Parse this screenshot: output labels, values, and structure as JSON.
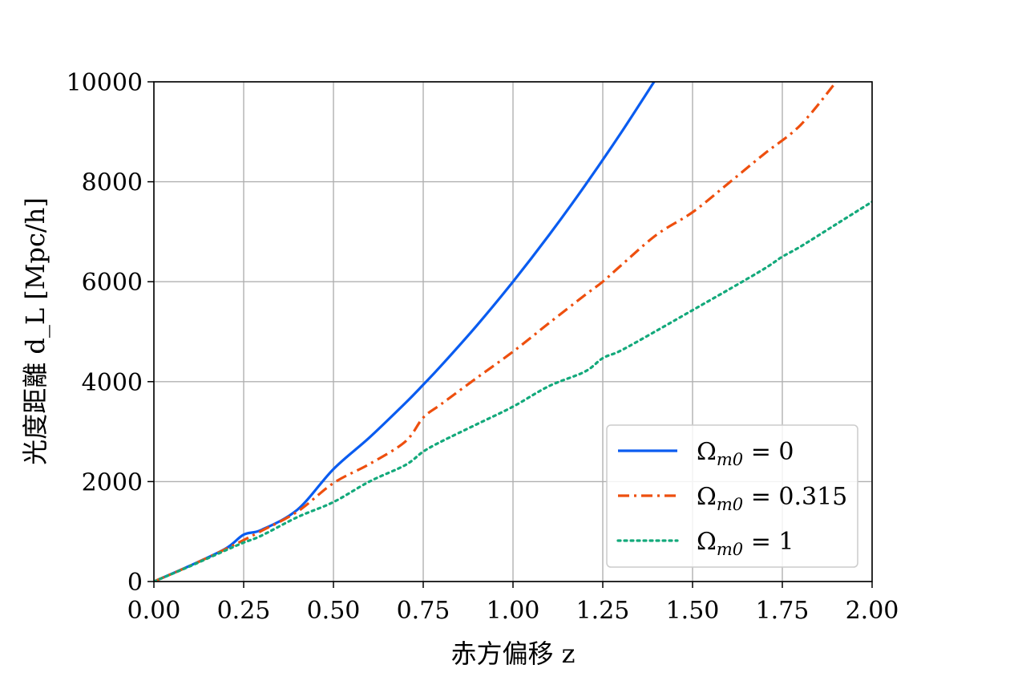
{
  "chart_data": {
    "type": "line",
    "xlabel": "赤方偏移 z",
    "ylabel": "光度距離 d_L [Mpc/h]",
    "xlim": [
      0,
      2
    ],
    "ylim": [
      0,
      10000
    ],
    "xticks": [
      "0.00",
      "0.25",
      "0.50",
      "0.75",
      "1.00",
      "1.25",
      "1.50",
      "1.75",
      "2.00"
    ],
    "yticks": [
      "0",
      "2000",
      "4000",
      "6000",
      "8000",
      "10000"
    ],
    "grid": true,
    "legend_position": "lower-right",
    "series": [
      {
        "name": "Ωm0 = 0",
        "color": "#0a5cf0",
        "dash": "solid",
        "x": [
          0,
          0.1,
          0.2,
          0.25,
          0.3,
          0.4,
          0.5,
          0.6,
          0.7,
          0.75,
          0.8,
          0.9,
          1.0,
          1.1,
          1.2,
          1.3,
          1.4
        ],
        "y": [
          0,
          315,
          660,
          938,
          1035,
          1440,
          2250,
          2880,
          3570,
          3938,
          4320,
          5130,
          6000,
          6930,
          7920,
          8970,
          10080
        ]
      },
      {
        "name": "Ωm0 = 0.315",
        "color": "#ee4f0e",
        "dash": "dashdot",
        "x": [
          0,
          0.1,
          0.2,
          0.25,
          0.3,
          0.4,
          0.5,
          0.6,
          0.7,
          0.75,
          0.8,
          0.9,
          1.0,
          1.1,
          1.2,
          1.25,
          1.3,
          1.4,
          1.5,
          1.6,
          1.7,
          1.8,
          1.9
        ],
        "y": [
          0,
          312,
          650,
          830,
          1015,
          1400,
          1970,
          2350,
          2800,
          3280,
          3550,
          4080,
          4600,
          5170,
          5730,
          6000,
          6320,
          6940,
          7390,
          7970,
          8560,
          9130,
          10000
        ]
      },
      {
        "name": "Ωm0 = 1",
        "color": "#13a97b",
        "dash": "dotted",
        "x": [
          0,
          0.1,
          0.2,
          0.25,
          0.3,
          0.4,
          0.5,
          0.6,
          0.7,
          0.75,
          0.8,
          0.9,
          1.0,
          1.1,
          1.2,
          1.25,
          1.3,
          1.4,
          1.5,
          1.6,
          1.7,
          1.75,
          1.8,
          1.9,
          2.0
        ],
        "y": [
          0,
          305,
          625,
          780,
          920,
          1290,
          1590,
          2000,
          2330,
          2600,
          2800,
          3150,
          3500,
          3910,
          4200,
          4470,
          4620,
          5020,
          5430,
          5840,
          6260,
          6500,
          6700,
          7150,
          7600
        ]
      }
    ],
    "legend_labels": [
      {
        "symbol": "Ω",
        "sub": "m0",
        "rest": " = 0"
      },
      {
        "symbol": "Ω",
        "sub": "m0",
        "rest": " = 0.315"
      },
      {
        "symbol": "Ω",
        "sub": "m0",
        "rest": " = 1"
      }
    ]
  }
}
